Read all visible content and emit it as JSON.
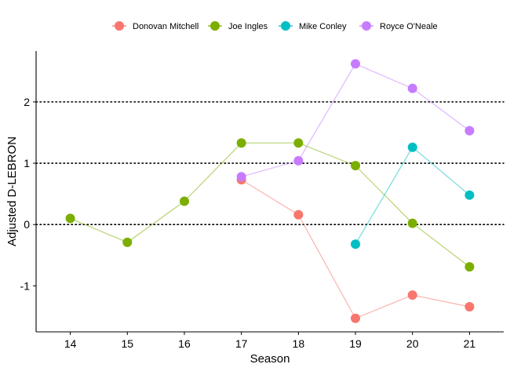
{
  "chart_data": {
    "type": "line",
    "title": "",
    "xlabel": "Season",
    "ylabel": "Adjusted D-LEBRON",
    "x_ticks": [
      "14",
      "15",
      "16",
      "17",
      "18",
      "19",
      "20",
      "21"
    ],
    "y_ticks": [
      -1,
      0,
      1,
      2
    ],
    "xlim": [
      13.4,
      21.6
    ],
    "ylim": [
      -1.75,
      2.83
    ],
    "reference_lines": [
      0,
      1,
      2
    ],
    "legend_position": "top",
    "series": [
      {
        "name": "Donovan Mitchell",
        "color": "#F8766D",
        "x": [
          17,
          18,
          19,
          20,
          21
        ],
        "values": [
          0.73,
          0.16,
          -1.53,
          -1.15,
          -1.34
        ]
      },
      {
        "name": "Joe Ingles",
        "color": "#7CAE00",
        "x": [
          14,
          15,
          16,
          17,
          18,
          19,
          20,
          21
        ],
        "values": [
          0.1,
          -0.29,
          0.38,
          1.33,
          1.33,
          0.96,
          0.02,
          -0.69
        ]
      },
      {
        "name": "Mike Conley",
        "color": "#00BFC4",
        "x": [
          19,
          20,
          21
        ],
        "values": [
          -0.32,
          1.26,
          0.48
        ]
      },
      {
        "name": "Royce O'Neale",
        "color": "#C77CFF",
        "x": [
          17,
          18,
          19,
          20,
          21
        ],
        "values": [
          0.78,
          1.04,
          2.62,
          2.22,
          1.53
        ]
      }
    ]
  }
}
